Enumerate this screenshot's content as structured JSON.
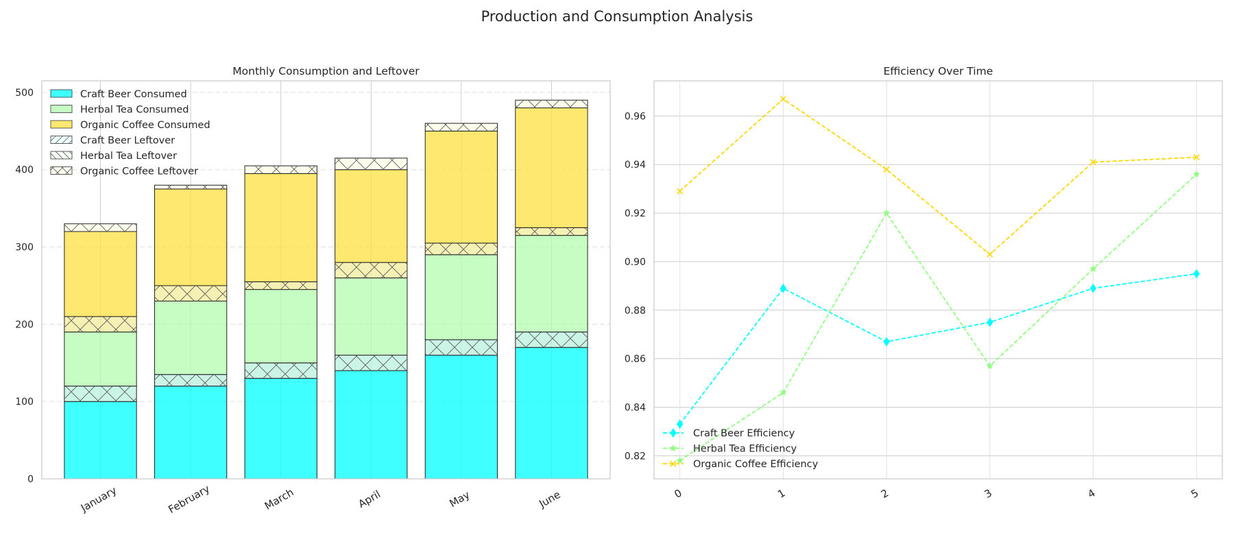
{
  "suptitle": "Production and Consumption Analysis",
  "chart_data": [
    {
      "type": "bar",
      "stacked": true,
      "title": "Monthly Consumption and Leftover",
      "xlabel": "",
      "ylabel": "",
      "categories": [
        "January",
        "February",
        "March",
        "April",
        "May",
        "June"
      ],
      "ylim": [
        0,
        515
      ],
      "yticks": [
        0,
        100,
        200,
        300,
        400,
        500
      ],
      "grid": true,
      "legend_position": "upper-left",
      "series": [
        {
          "name": "Craft Beer Consumed",
          "color": "#00ffff",
          "hatch": "none",
          "values": [
            100,
            120,
            130,
            140,
            160,
            170
          ]
        },
        {
          "name": "Craft Beer Leftover",
          "color": "#b8f0dc",
          "hatch": "cross",
          "values": [
            20,
            15,
            20,
            20,
            20,
            20
          ]
        },
        {
          "name": "Herbal Tea Consumed",
          "color": "#b3fcad",
          "hatch": "none",
          "values": [
            70,
            95,
            95,
            100,
            110,
            125
          ]
        },
        {
          "name": "Herbal Tea Leftover",
          "color": "#f1eb9a",
          "hatch": "cross",
          "values": [
            20,
            20,
            10,
            20,
            15,
            10
          ]
        },
        {
          "name": "Organic Coffee Consumed",
          "color": "#ffe040",
          "hatch": "none",
          "values": [
            110,
            125,
            140,
            120,
            145,
            155
          ]
        },
        {
          "name": "Organic Coffee Leftover",
          "color": "#fcfde6",
          "hatch": "cross",
          "values": [
            10,
            5,
            10,
            15,
            10,
            10
          ]
        }
      ],
      "legend": [
        {
          "name": "Craft Beer Consumed",
          "color": "#00ffff",
          "hatch": "none"
        },
        {
          "name": "Herbal Tea Consumed",
          "color": "#b3fcad",
          "hatch": "none"
        },
        {
          "name": "Organic Coffee Consumed",
          "color": "#ffe040",
          "hatch": "none"
        },
        {
          "name": "Craft Beer Leftover",
          "color": "#eefefe",
          "hatch": "diag"
        },
        {
          "name": "Herbal Tea Leftover",
          "color": "#f4fcf3",
          "hatch": "back"
        },
        {
          "name": "Organic Coffee Leftover",
          "color": "#fefef0",
          "hatch": "cross"
        }
      ]
    },
    {
      "type": "line",
      "title": "Efficiency Over Time",
      "xlabel": "",
      "ylabel": "",
      "x": [
        0,
        1,
        2,
        3,
        4,
        5
      ],
      "xlim": [
        -0.25,
        5.25
      ],
      "ylim": [
        0.8105,
        0.9745
      ],
      "yticks": [
        0.82,
        0.84,
        0.86,
        0.88,
        0.9,
        0.92,
        0.94,
        0.96
      ],
      "ytick_labels": [
        "0.82",
        "0.84",
        "0.86",
        "0.88",
        "0.90",
        "0.92",
        "0.94",
        "0.96"
      ],
      "grid": true,
      "legend_position": "lower-left",
      "series": [
        {
          "name": "Craft Beer Efficiency",
          "color": "#00ffff",
          "marker": "diamond",
          "values": [
            0.833,
            0.889,
            0.867,
            0.875,
            0.889,
            0.895
          ]
        },
        {
          "name": "Herbal Tea Efficiency",
          "color": "#90ff80",
          "marker": "star",
          "values": [
            0.818,
            0.846,
            0.92,
            0.857,
            0.897,
            0.936
          ]
        },
        {
          "name": "Organic Coffee Efficiency",
          "color": "#ffd700",
          "marker": "x",
          "values": [
            0.929,
            0.967,
            0.938,
            0.903,
            0.941,
            0.943
          ]
        }
      ]
    }
  ]
}
